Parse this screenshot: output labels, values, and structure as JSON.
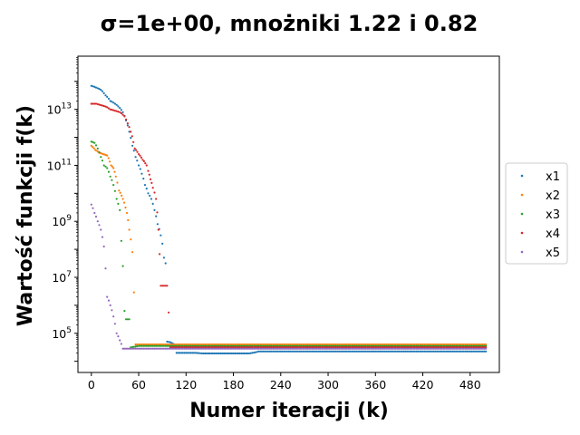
{
  "chart_data": {
    "type": "scatter",
    "title": "σ=1e+00, mnożniki 1.22 i 0.82",
    "xlabel": "Numer iteracji (k)",
    "ylabel": "Wartość funkcji f(k)",
    "xlim": [
      -17,
      517
    ],
    "ylog": true,
    "ylim_log10": [
      3.6,
      14.9
    ],
    "xticks": [
      0,
      60,
      120,
      180,
      240,
      300,
      360,
      420,
      480
    ],
    "yticks": [
      {
        "exp": 5,
        "base": "10",
        "sup": "5"
      },
      {
        "exp": 7,
        "base": "10",
        "sup": "7"
      },
      {
        "exp": 9,
        "base": "10",
        "sup": "9"
      },
      {
        "exp": 11,
        "base": "10",
        "sup": "11"
      },
      {
        "exp": 13,
        "base": "10",
        "sup": "13"
      }
    ],
    "grid": false,
    "legend_position": "right-outside",
    "series": [
      {
        "name": "x1",
        "color": "#1f77b4",
        "points_log10": [
          [
            0,
            13.84
          ],
          [
            6,
            13.78
          ],
          [
            12,
            13.7
          ],
          [
            18,
            13.5
          ],
          [
            24,
            13.3
          ],
          [
            30,
            13.2
          ],
          [
            36,
            13.05
          ],
          [
            40,
            12.9
          ],
          [
            44,
            12.6
          ],
          [
            48,
            12.2
          ],
          [
            52,
            11.7
          ],
          [
            56,
            11.3
          ],
          [
            60,
            11.0
          ],
          [
            64,
            10.7
          ],
          [
            68,
            10.3
          ],
          [
            72,
            10.0
          ],
          [
            76,
            9.8
          ],
          [
            80,
            9.4
          ],
          [
            84,
            8.9
          ],
          [
            88,
            8.5
          ],
          [
            90,
            8.2
          ],
          [
            92,
            7.7
          ],
          [
            94,
            7.5
          ],
          [
            96,
            4.7
          ],
          [
            100,
            4.68
          ],
          [
            104,
            4.62
          ],
          [
            108,
            4.3
          ],
          [
            120,
            4.3
          ],
          [
            132,
            4.3
          ],
          [
            140,
            4.28
          ],
          [
            160,
            4.28
          ],
          [
            180,
            4.28
          ],
          [
            200,
            4.28
          ],
          [
            212,
            4.35
          ],
          [
            260,
            4.35
          ],
          [
            320,
            4.35
          ],
          [
            380,
            4.35
          ],
          [
            440,
            4.35
          ],
          [
            500,
            4.35
          ]
        ]
      },
      {
        "name": "x2",
        "color": "#ff7f0e",
        "points_log10": [
          [
            0,
            11.7
          ],
          [
            5,
            11.55
          ],
          [
            10,
            11.45
          ],
          [
            15,
            11.4
          ],
          [
            20,
            11.35
          ],
          [
            25,
            11.0
          ],
          [
            28,
            10.9
          ],
          [
            31,
            10.6
          ],
          [
            35,
            10.1
          ],
          [
            40,
            9.8
          ],
          [
            45,
            9.3
          ],
          [
            48,
            8.7
          ],
          [
            52,
            7.9
          ],
          [
            56,
            4.6
          ],
          [
            60,
            4.6
          ],
          [
            90,
            4.6
          ],
          [
            140,
            4.6
          ],
          [
            200,
            4.6
          ],
          [
            260,
            4.6
          ],
          [
            320,
            4.6
          ],
          [
            380,
            4.6
          ],
          [
            440,
            4.6
          ],
          [
            500,
            4.6
          ]
        ]
      },
      {
        "name": "x3",
        "color": "#2ca02c",
        "points_log10": [
          [
            0,
            11.85
          ],
          [
            4,
            11.8
          ],
          [
            8,
            11.6
          ],
          [
            12,
            11.3
          ],
          [
            16,
            11.0
          ],
          [
            20,
            10.9
          ],
          [
            24,
            10.6
          ],
          [
            28,
            10.3
          ],
          [
            32,
            9.8
          ],
          [
            36,
            9.4
          ],
          [
            38,
            8.3
          ],
          [
            40,
            7.4
          ],
          [
            42,
            5.8
          ],
          [
            44,
            5.5
          ],
          [
            48,
            5.5
          ],
          [
            50,
            4.5
          ],
          [
            60,
            4.55
          ],
          [
            90,
            4.55
          ],
          [
            140,
            4.55
          ],
          [
            200,
            4.55
          ],
          [
            260,
            4.55
          ],
          [
            320,
            4.55
          ],
          [
            380,
            4.55
          ],
          [
            440,
            4.55
          ],
          [
            500,
            4.55
          ]
        ]
      },
      {
        "name": "x4",
        "color": "#d62728",
        "points_log10": [
          [
            0,
            13.2
          ],
          [
            6,
            13.2
          ],
          [
            12,
            13.15
          ],
          [
            18,
            13.1
          ],
          [
            24,
            13.0
          ],
          [
            30,
            12.95
          ],
          [
            36,
            12.9
          ],
          [
            42,
            12.75
          ],
          [
            46,
            12.5
          ],
          [
            50,
            12.2
          ],
          [
            55,
            11.6
          ],
          [
            60,
            11.4
          ],
          [
            65,
            11.2
          ],
          [
            70,
            11.0
          ],
          [
            72,
            10.8
          ],
          [
            75,
            10.5
          ],
          [
            78,
            10.2
          ],
          [
            82,
            9.8
          ],
          [
            85,
            8.7
          ],
          [
            88,
            6.7
          ],
          [
            92,
            6.7
          ],
          [
            96,
            6.7
          ],
          [
            100,
            4.5
          ],
          [
            120,
            4.5
          ],
          [
            160,
            4.5
          ],
          [
            220,
            4.5
          ],
          [
            280,
            4.5
          ],
          [
            340,
            4.5
          ],
          [
            400,
            4.5
          ],
          [
            460,
            4.5
          ],
          [
            500,
            4.5
          ]
        ]
      },
      {
        "name": "x5",
        "color": "#9467bd",
        "points_log10": [
          [
            0,
            9.6
          ],
          [
            4,
            9.3
          ],
          [
            8,
            9.0
          ],
          [
            12,
            8.7
          ],
          [
            16,
            8.1
          ],
          [
            20,
            6.3
          ],
          [
            24,
            6.0
          ],
          [
            28,
            5.6
          ],
          [
            32,
            5.0
          ],
          [
            36,
            4.75
          ],
          [
            40,
            4.45
          ],
          [
            50,
            4.45
          ],
          [
            60,
            4.45
          ],
          [
            80,
            4.45
          ],
          [
            100,
            4.45
          ],
          [
            140,
            4.45
          ],
          [
            200,
            4.45
          ],
          [
            260,
            4.45
          ],
          [
            320,
            4.45
          ],
          [
            380,
            4.45
          ],
          [
            440,
            4.45
          ],
          [
            500,
            4.45
          ]
        ]
      }
    ]
  }
}
